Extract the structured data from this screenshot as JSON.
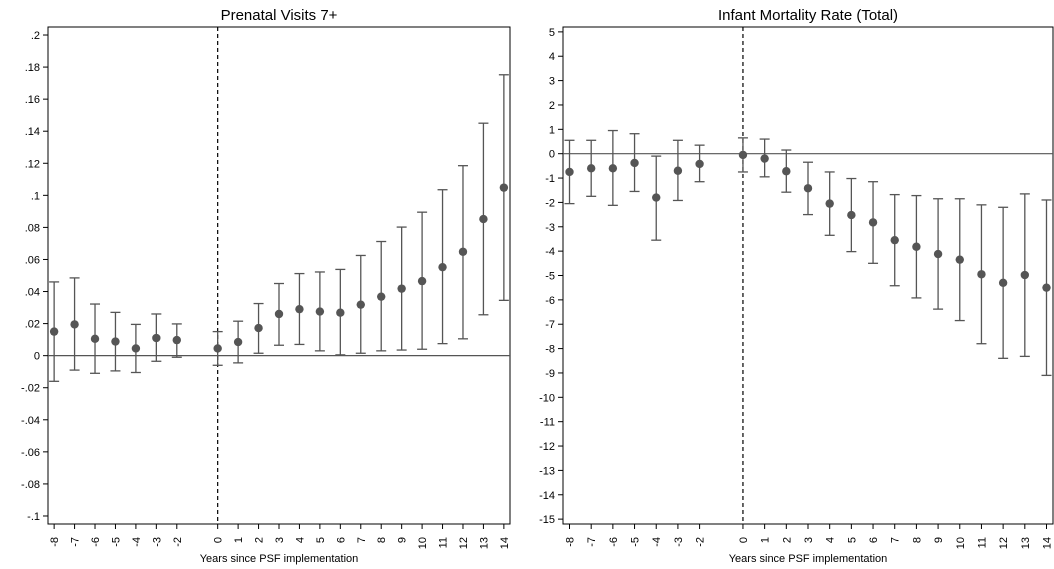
{
  "chart_data": [
    {
      "type": "scatter",
      "title": "Prenatal Visits 7+",
      "xlabel": "Years since PSF implementation",
      "ylabel": "",
      "x": [
        -8,
        -7,
        -6,
        -5,
        -4,
        -3,
        -2,
        0,
        1,
        2,
        3,
        4,
        5,
        6,
        7,
        8,
        9,
        10,
        11,
        12,
        13,
        14
      ],
      "xtick_labels": [
        "-8",
        "-7",
        "-6",
        "-5",
        "-4",
        "-3",
        "-2",
        "0",
        "1",
        "2",
        "3",
        "4",
        "5",
        "6",
        "7",
        "8",
        "9",
        "10",
        "11",
        "12",
        "13",
        "14"
      ],
      "ytick_values": [
        0.2,
        0.18,
        0.16,
        0.14,
        0.12,
        0.1,
        0.08,
        0.06,
        0.04,
        0.02,
        0,
        -0.02,
        -0.04,
        -0.06,
        -0.08,
        -0.1
      ],
      "ytick_labels": [
        ".2",
        ".18",
        ".16",
        ".14",
        ".12",
        ".1",
        ".08",
        ".06",
        ".04",
        ".02",
        "0",
        "-.02",
        "-.04",
        "-.06",
        "-.08",
        "-.1"
      ],
      "ylim": [
        -0.105,
        0.205
      ],
      "xlim": [
        -8.3,
        14.3
      ],
      "point": [
        0.015,
        0.0195,
        0.0105,
        0.0088,
        0.0045,
        0.011,
        0.0097,
        0.0045,
        0.0085,
        0.0172,
        0.026,
        0.029,
        0.0275,
        0.0268,
        0.0318,
        0.0368,
        0.0418,
        0.0465,
        0.0552,
        0.0648,
        0.0852,
        0.1048
      ],
      "ci_low": [
        -0.016,
        -0.009,
        -0.011,
        -0.0095,
        -0.0105,
        -0.0035,
        -0.001,
        -0.006,
        -0.0045,
        0.0015,
        0.0065,
        0.007,
        0.003,
        0.0005,
        0.0015,
        0.003,
        0.0035,
        0.004,
        0.0075,
        0.0105,
        0.0255,
        0.0345
      ],
      "ci_high": [
        0.046,
        0.0485,
        0.0322,
        0.027,
        0.0195,
        0.026,
        0.0198,
        0.015,
        0.0215,
        0.0325,
        0.045,
        0.0512,
        0.0522,
        0.0538,
        0.0625,
        0.0712,
        0.0802,
        0.0895,
        0.1035,
        0.1185,
        0.145,
        0.1752
      ],
      "reference_line_x": 0,
      "reference_line_y": 0,
      "grid": false,
      "colors": {
        "marker": "#555555",
        "errorbar": "#555555",
        "hline": "#555555",
        "vline": "#000000",
        "axis": "#000000"
      }
    },
    {
      "type": "scatter",
      "title": "Infant Mortality Rate (Total)",
      "xlabel": "Years since PSF implementation",
      "ylabel": "",
      "x": [
        -8,
        -7,
        -6,
        -5,
        -4,
        -3,
        -2,
        0,
        1,
        2,
        3,
        4,
        5,
        6,
        7,
        8,
        9,
        10,
        11,
        12,
        13,
        14
      ],
      "xtick_labels": [
        "-8",
        "-7",
        "-6",
        "-5",
        "-4",
        "-3",
        "-2",
        "0",
        "1",
        "2",
        "3",
        "4",
        "5",
        "6",
        "7",
        "8",
        "9",
        "10",
        "11",
        "12",
        "13",
        "14"
      ],
      "ytick_values": [
        5,
        4,
        3,
        2,
        1,
        0,
        -1,
        -2,
        -3,
        -4,
        -5,
        -6,
        -7,
        -8,
        -9,
        -10,
        -11,
        -12,
        -13,
        -14,
        -15
      ],
      "ytick_labels": [
        "5",
        "4",
        "3",
        "2",
        "1",
        "0",
        "-1",
        "-2",
        "-3",
        "-4",
        "-5",
        "-6",
        "-7",
        "-8",
        "-9",
        "-10",
        "-11",
        "-12",
        "-13",
        "-14",
        "-15"
      ],
      "ylim": [
        -15.2,
        5.2
      ],
      "xlim": [
        -8.3,
        14.3
      ],
      "point": [
        -0.75,
        -0.6,
        -0.6,
        -0.38,
        -1.8,
        -0.7,
        -0.42,
        -0.05,
        -0.2,
        -0.72,
        -1.42,
        -2.05,
        -2.52,
        -2.82,
        -3.55,
        -3.82,
        -4.12,
        -4.35,
        -4.95,
        -5.3,
        -4.98,
        -5.5
      ],
      "ci_low": [
        -2.05,
        -1.75,
        -2.12,
        -1.55,
        -3.55,
        -1.92,
        -1.15,
        -0.75,
        -0.95,
        -1.58,
        -2.5,
        -3.35,
        -4.02,
        -4.5,
        -5.42,
        -5.92,
        -6.38,
        -6.85,
        -7.8,
        -8.4,
        -8.32,
        -9.1
      ],
      "ci_high": [
        0.55,
        0.55,
        0.95,
        0.82,
        -0.1,
        0.55,
        0.35,
        0.65,
        0.6,
        0.15,
        -0.35,
        -0.75,
        -1.02,
        -1.15,
        -1.68,
        -1.72,
        -1.85,
        -1.85,
        -2.1,
        -2.2,
        -1.65,
        -1.9
      ],
      "reference_line_x": 0,
      "reference_line_y": 0,
      "grid": false,
      "colors": {
        "marker": "#555555",
        "errorbar": "#555555",
        "hline": "#555555",
        "vline": "#000000",
        "axis": "#000000"
      }
    }
  ]
}
